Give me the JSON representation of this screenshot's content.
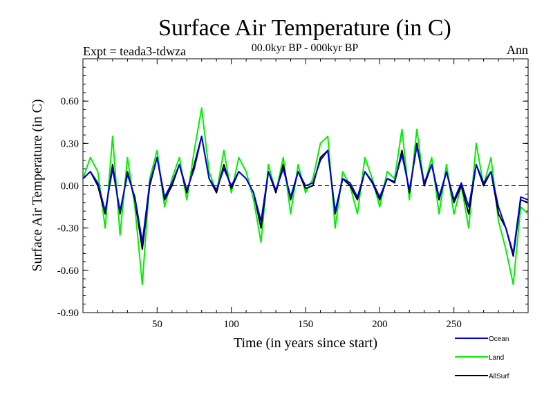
{
  "chart_data": {
    "type": "line",
    "title": "Surface Air Temperature (in C)",
    "subtitle": "00.0kyr BP - 000kyr BP",
    "experiment_label": "Expt = teada3-tdwza",
    "period_label": "Ann",
    "xlabel": "Time (in years since start)",
    "ylabel": "Surface Air Temperature (in C)",
    "xlim": [
      0,
      300
    ],
    "ylim": [
      -0.9,
      0.9
    ],
    "x_ticks": [
      50,
      100,
      150,
      200,
      250
    ],
    "x_tick_labels": [
      "50",
      "100",
      "150",
      "200",
      "250"
    ],
    "y_ticks": [
      -0.9,
      -0.6,
      -0.3,
      0.0,
      0.3,
      0.6
    ],
    "y_tick_labels": [
      "-0.90",
      "-0.60",
      "-0.30",
      "0.00",
      "0.30",
      "0.60"
    ],
    "zero_line": 0.0,
    "legend_position": "bottom-right",
    "series": [
      {
        "name": "Land",
        "color": "#00ee00",
        "x": [
          0,
          5,
          10,
          15,
          20,
          25,
          30,
          35,
          40,
          45,
          50,
          55,
          60,
          65,
          70,
          75,
          80,
          85,
          90,
          95,
          100,
          105,
          110,
          115,
          120,
          125,
          130,
          135,
          140,
          145,
          150,
          155,
          160,
          165,
          170,
          175,
          180,
          185,
          190,
          195,
          200,
          205,
          210,
          215,
          220,
          225,
          230,
          235,
          240,
          245,
          250,
          255,
          260,
          265,
          270,
          275,
          280,
          285,
          290,
          295,
          300
        ],
        "values": [
          0.05,
          0.2,
          0.1,
          -0.3,
          0.35,
          -0.35,
          0.2,
          -0.15,
          -0.7,
          0.05,
          0.25,
          -0.15,
          0.05,
          0.2,
          -0.1,
          0.25,
          0.55,
          0.1,
          -0.05,
          0.25,
          -0.05,
          0.2,
          0.1,
          -0.1,
          -0.4,
          0.15,
          -0.05,
          0.2,
          -0.2,
          0.15,
          -0.05,
          0.05,
          0.3,
          0.35,
          -0.3,
          0.1,
          0.0,
          -0.2,
          0.2,
          0.05,
          -0.15,
          0.1,
          0.05,
          0.4,
          -0.1,
          0.4,
          0.0,
          0.2,
          -0.2,
          0.15,
          -0.2,
          0.0,
          -0.3,
          0.3,
          0.0,
          0.2,
          -0.25,
          -0.45,
          -0.7,
          -0.15,
          -0.2
        ]
      },
      {
        "name": "AllSurf",
        "color": "#000000",
        "x": [
          0,
          5,
          10,
          15,
          20,
          25,
          30,
          35,
          40,
          45,
          50,
          55,
          60,
          65,
          70,
          75,
          80,
          85,
          90,
          95,
          100,
          105,
          110,
          115,
          120,
          125,
          130,
          135,
          140,
          145,
          150,
          155,
          160,
          165,
          170,
          175,
          180,
          185,
          190,
          195,
          200,
          205,
          210,
          215,
          220,
          225,
          230,
          235,
          240,
          245,
          250,
          255,
          260,
          265,
          270,
          275,
          280,
          285,
          290,
          295,
          300
        ],
        "values": [
          0.05,
          0.1,
          0.0,
          -0.2,
          0.15,
          -0.2,
          0.1,
          -0.1,
          -0.45,
          0.0,
          0.2,
          -0.1,
          0.0,
          0.15,
          -0.05,
          0.15,
          0.35,
          0.05,
          -0.05,
          0.15,
          -0.02,
          0.1,
          0.05,
          -0.05,
          -0.3,
          0.1,
          -0.05,
          0.15,
          -0.1,
          0.1,
          -0.02,
          0.0,
          0.2,
          0.25,
          -0.2,
          0.05,
          0.0,
          -0.1,
          0.1,
          0.02,
          -0.1,
          0.05,
          0.02,
          0.25,
          -0.05,
          0.3,
          0.0,
          0.15,
          -0.1,
          0.1,
          -0.12,
          0.0,
          -0.2,
          0.15,
          0.0,
          0.1,
          -0.2,
          -0.3,
          -0.5,
          -0.1,
          -0.12
        ]
      },
      {
        "name": "Ocean",
        "color": "#0000dd",
        "x": [
          0,
          5,
          10,
          15,
          20,
          25,
          30,
          35,
          40,
          45,
          50,
          55,
          60,
          65,
          70,
          75,
          80,
          85,
          90,
          95,
          100,
          105,
          110,
          115,
          120,
          125,
          130,
          135,
          140,
          145,
          150,
          155,
          160,
          165,
          170,
          175,
          180,
          185,
          190,
          195,
          200,
          205,
          210,
          215,
          220,
          225,
          230,
          235,
          240,
          245,
          250,
          255,
          260,
          265,
          270,
          275,
          280,
          285,
          290,
          295,
          300
        ],
        "values": [
          0.05,
          0.1,
          0.02,
          -0.18,
          0.12,
          -0.18,
          0.08,
          -0.08,
          -0.4,
          0.02,
          0.2,
          -0.08,
          0.02,
          0.15,
          -0.03,
          0.12,
          0.35,
          0.05,
          -0.03,
          0.12,
          0.0,
          0.1,
          0.05,
          -0.05,
          -0.25,
          0.1,
          -0.03,
          0.12,
          -0.08,
          0.1,
          0.0,
          0.02,
          0.18,
          0.25,
          -0.18,
          0.05,
          0.02,
          -0.08,
          0.1,
          0.03,
          -0.08,
          0.05,
          0.03,
          0.22,
          -0.03,
          0.28,
          0.02,
          0.15,
          -0.08,
          0.1,
          -0.1,
          0.02,
          -0.15,
          0.15,
          0.02,
          0.1,
          -0.15,
          -0.3,
          -0.48,
          -0.08,
          -0.1
        ]
      }
    ]
  }
}
